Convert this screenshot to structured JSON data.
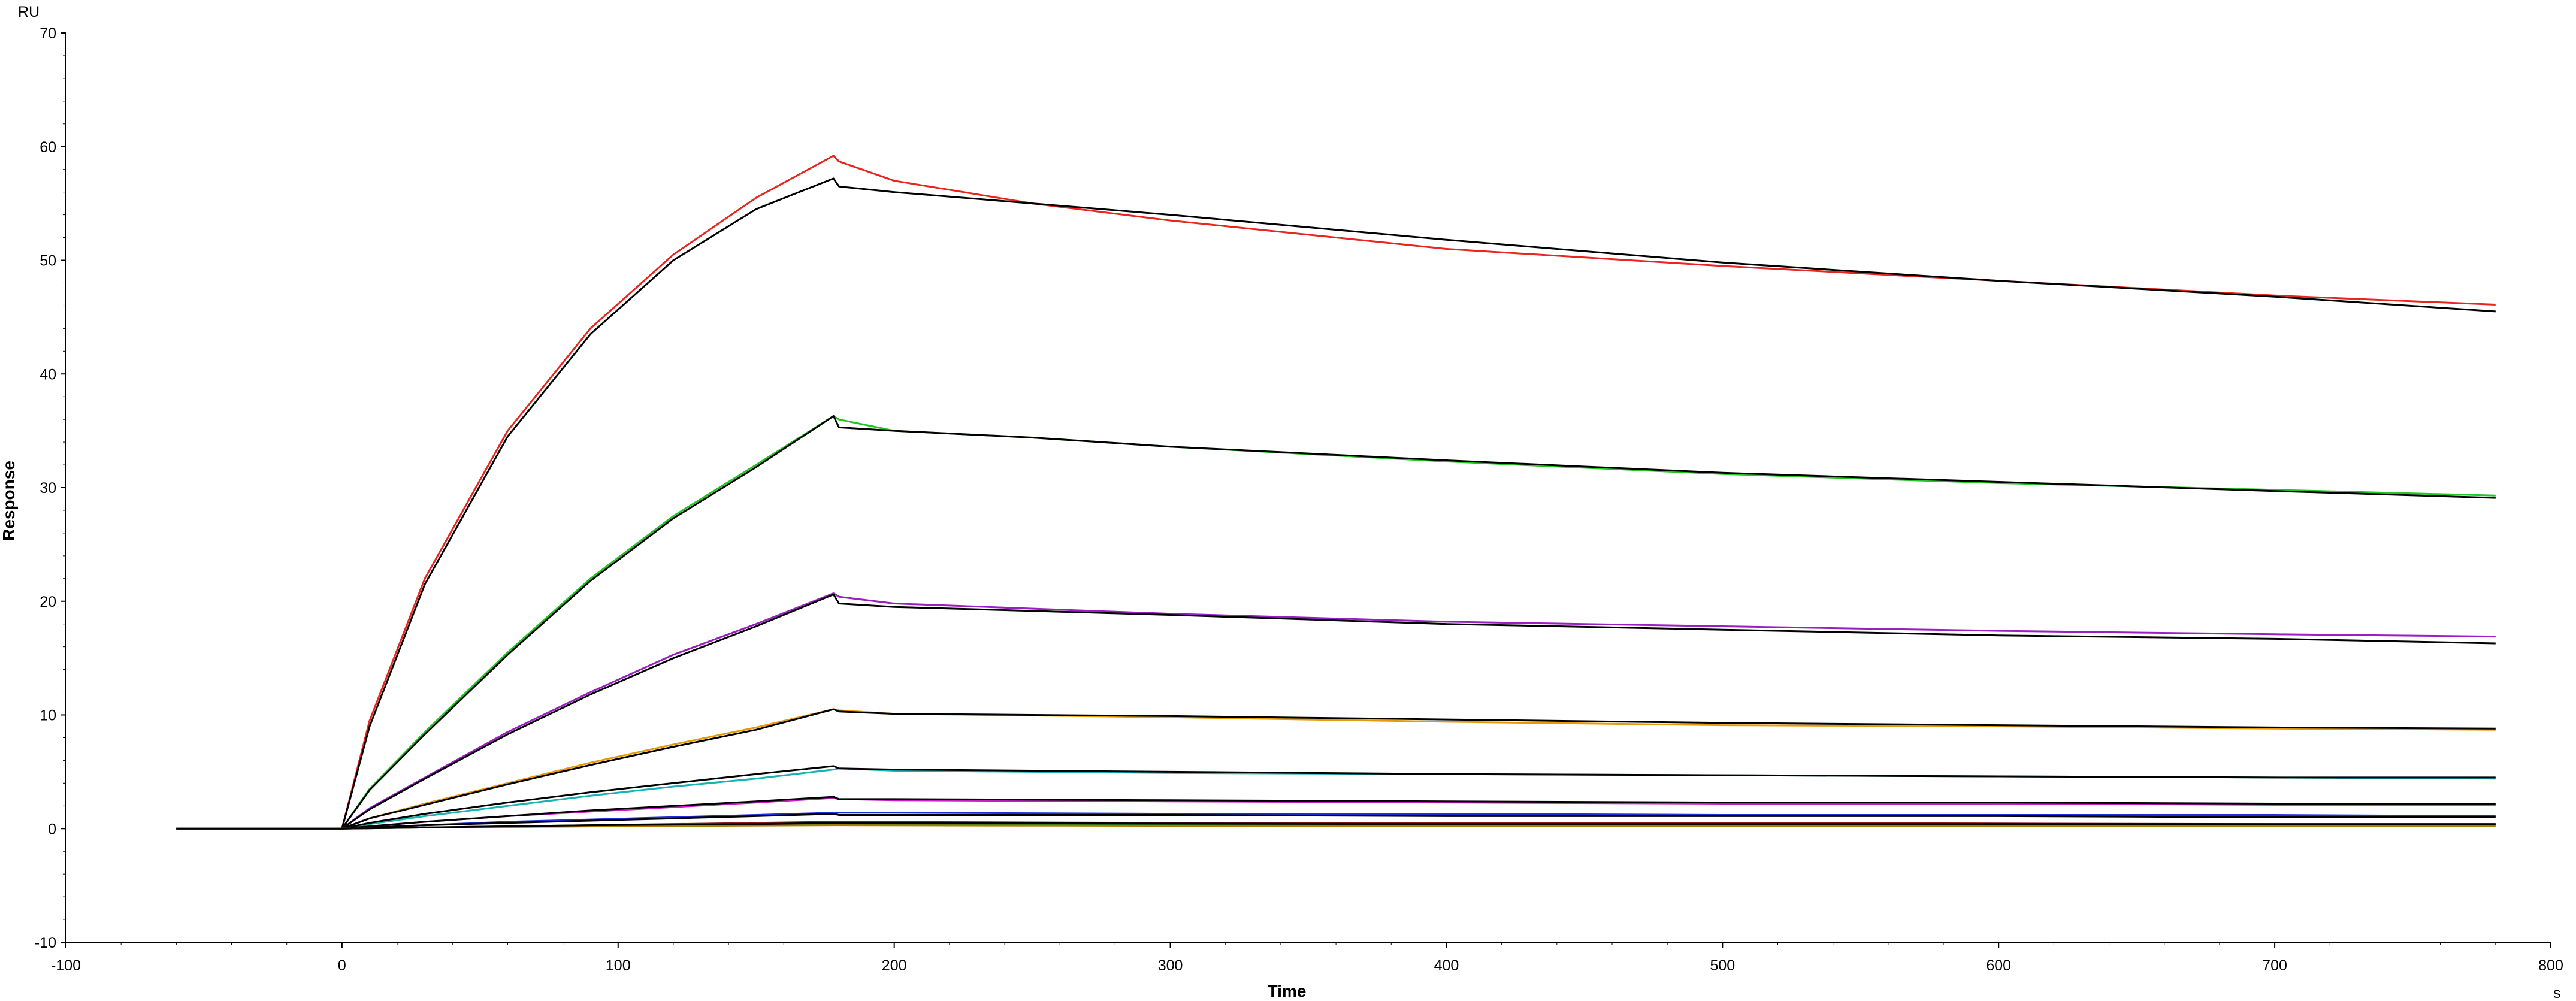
{
  "chart_data": {
    "type": "line",
    "title": "",
    "xlabel": "Time",
    "ylabel": "Response",
    "x_unit": "s",
    "y_unit": "RU",
    "xlim": [
      -100,
      800
    ],
    "ylim": [
      -10,
      70
    ],
    "x_ticks": [
      -100,
      0,
      100,
      200,
      300,
      400,
      500,
      600,
      700,
      800
    ],
    "y_ticks": [
      -10,
      0,
      10,
      20,
      30,
      40,
      50,
      60,
      70
    ],
    "grid": false,
    "legend": "none",
    "series": [
      {
        "color": "#e8251f",
        "points": [
          [
            -60,
            0
          ],
          [
            0,
            0
          ],
          [
            10,
            9.5
          ],
          [
            30,
            22
          ],
          [
            60,
            35
          ],
          [
            90,
            44
          ],
          [
            120,
            50.5
          ],
          [
            150,
            55.5
          ],
          [
            178,
            59.2
          ],
          [
            180,
            58.7
          ],
          [
            200,
            57
          ],
          [
            250,
            55
          ],
          [
            300,
            53.5
          ],
          [
            400,
            51
          ],
          [
            500,
            49.5
          ],
          [
            600,
            48.2
          ],
          [
            700,
            46.9
          ],
          [
            780,
            46.1
          ]
        ]
      },
      {
        "color": "#000000",
        "points": [
          [
            -60,
            0
          ],
          [
            0,
            0
          ],
          [
            10,
            9
          ],
          [
            30,
            21.5
          ],
          [
            60,
            34.5
          ],
          [
            90,
            43.5
          ],
          [
            120,
            50
          ],
          [
            150,
            54.5
          ],
          [
            178,
            57.2
          ],
          [
            180,
            56.5
          ],
          [
            200,
            56
          ],
          [
            250,
            55
          ],
          [
            300,
            54
          ],
          [
            400,
            51.8
          ],
          [
            500,
            49.8
          ],
          [
            600,
            48.2
          ],
          [
            700,
            46.8
          ],
          [
            780,
            45.5
          ]
        ]
      },
      {
        "color": "#22c622",
        "points": [
          [
            -60,
            0
          ],
          [
            0,
            0
          ],
          [
            10,
            3.5
          ],
          [
            30,
            8.5
          ],
          [
            60,
            15.5
          ],
          [
            90,
            22
          ],
          [
            120,
            27.5
          ],
          [
            150,
            32
          ],
          [
            178,
            36.3
          ],
          [
            180,
            36
          ],
          [
            200,
            35
          ],
          [
            250,
            34.4
          ],
          [
            300,
            33.6
          ],
          [
            400,
            32.3
          ],
          [
            500,
            31.2
          ],
          [
            600,
            30.4
          ],
          [
            700,
            29.8
          ],
          [
            780,
            29.3
          ]
        ]
      },
      {
        "color": "#000000",
        "points": [
          [
            -60,
            0
          ],
          [
            0,
            0
          ],
          [
            10,
            3.4
          ],
          [
            30,
            8.3
          ],
          [
            60,
            15.3
          ],
          [
            90,
            21.8
          ],
          [
            120,
            27.3
          ],
          [
            150,
            31.8
          ],
          [
            178,
            36.3
          ],
          [
            180,
            35.3
          ],
          [
            200,
            35
          ],
          [
            250,
            34.4
          ],
          [
            300,
            33.6
          ],
          [
            400,
            32.4
          ],
          [
            500,
            31.3
          ],
          [
            600,
            30.5
          ],
          [
            700,
            29.7
          ],
          [
            780,
            29.1
          ]
        ]
      },
      {
        "color": "#9b1ec2",
        "points": [
          [
            -60,
            0
          ],
          [
            0,
            0
          ],
          [
            10,
            1.8
          ],
          [
            30,
            4.5
          ],
          [
            60,
            8.5
          ],
          [
            90,
            12
          ],
          [
            120,
            15.3
          ],
          [
            150,
            18
          ],
          [
            178,
            20.7
          ],
          [
            180,
            20.4
          ],
          [
            200,
            19.8
          ],
          [
            300,
            18.9
          ],
          [
            400,
            18.2
          ],
          [
            500,
            17.8
          ],
          [
            600,
            17.4
          ],
          [
            700,
            17.1
          ],
          [
            780,
            16.9
          ]
        ]
      },
      {
        "color": "#000000",
        "points": [
          [
            -60,
            0
          ],
          [
            0,
            0
          ],
          [
            10,
            1.7
          ],
          [
            30,
            4.4
          ],
          [
            60,
            8.3
          ],
          [
            90,
            11.8
          ],
          [
            120,
            15
          ],
          [
            150,
            17.8
          ],
          [
            178,
            20.6
          ],
          [
            180,
            19.8
          ],
          [
            200,
            19.5
          ],
          [
            300,
            18.8
          ],
          [
            400,
            18
          ],
          [
            500,
            17.5
          ],
          [
            600,
            17
          ],
          [
            700,
            16.7
          ],
          [
            780,
            16.3
          ]
        ]
      },
      {
        "color": "#e69a0a",
        "points": [
          [
            -60,
            0
          ],
          [
            0,
            0
          ],
          [
            10,
            0.9
          ],
          [
            30,
            2.2
          ],
          [
            60,
            4
          ],
          [
            90,
            5.8
          ],
          [
            120,
            7.4
          ],
          [
            150,
            8.9
          ],
          [
            178,
            10.5
          ],
          [
            180,
            10.4
          ],
          [
            200,
            10.1
          ],
          [
            300,
            9.8
          ],
          [
            400,
            9.4
          ],
          [
            500,
            9.1
          ],
          [
            600,
            9
          ],
          [
            700,
            8.8
          ],
          [
            780,
            8.7
          ]
        ]
      },
      {
        "color": "#000000",
        "points": [
          [
            -60,
            0
          ],
          [
            0,
            0
          ],
          [
            10,
            0.9
          ],
          [
            30,
            2.1
          ],
          [
            60,
            3.9
          ],
          [
            90,
            5.6
          ],
          [
            120,
            7.2
          ],
          [
            150,
            8.7
          ],
          [
            178,
            10.5
          ],
          [
            180,
            10.3
          ],
          [
            200,
            10.1
          ],
          [
            300,
            9.9
          ],
          [
            400,
            9.6
          ],
          [
            500,
            9.3
          ],
          [
            600,
            9.1
          ],
          [
            700,
            8.9
          ],
          [
            780,
            8.8
          ]
        ]
      },
      {
        "color": "#17b3b3",
        "points": [
          [
            -60,
            0
          ],
          [
            0,
            0
          ],
          [
            10,
            0.4
          ],
          [
            30,
            1.1
          ],
          [
            60,
            2
          ],
          [
            90,
            2.9
          ],
          [
            120,
            3.7
          ],
          [
            150,
            4.4
          ],
          [
            178,
            5.2
          ],
          [
            180,
            5.3
          ],
          [
            200,
            5.1
          ],
          [
            300,
            4.9
          ],
          [
            400,
            4.8
          ],
          [
            500,
            4.7
          ],
          [
            600,
            4.6
          ],
          [
            700,
            4.5
          ],
          [
            780,
            4.4
          ]
        ]
      },
      {
        "color": "#000000",
        "points": [
          [
            -60,
            0
          ],
          [
            0,
            0
          ],
          [
            10,
            0.5
          ],
          [
            30,
            1.3
          ],
          [
            60,
            2.3
          ],
          [
            90,
            3.2
          ],
          [
            120,
            4
          ],
          [
            150,
            4.8
          ],
          [
            178,
            5.5
          ],
          [
            180,
            5.3
          ],
          [
            200,
            5.2
          ],
          [
            300,
            5.0
          ],
          [
            400,
            4.8
          ],
          [
            500,
            4.7
          ],
          [
            600,
            4.6
          ],
          [
            700,
            4.5
          ],
          [
            780,
            4.5
          ]
        ]
      },
      {
        "color": "#c81ec8",
        "points": [
          [
            -60,
            0
          ],
          [
            0,
            0
          ],
          [
            10,
            0.2
          ],
          [
            30,
            0.6
          ],
          [
            60,
            1.1
          ],
          [
            90,
            1.5
          ],
          [
            120,
            1.9
          ],
          [
            150,
            2.3
          ],
          [
            178,
            2.7
          ],
          [
            180,
            2.6
          ],
          [
            200,
            2.5
          ],
          [
            300,
            2.4
          ],
          [
            400,
            2.3
          ],
          [
            500,
            2.2
          ],
          [
            600,
            2.2
          ],
          [
            700,
            2.1
          ],
          [
            780,
            2.1
          ]
        ]
      },
      {
        "color": "#000000",
        "points": [
          [
            -60,
            0
          ],
          [
            0,
            0
          ],
          [
            10,
            0.2
          ],
          [
            30,
            0.6
          ],
          [
            60,
            1.1
          ],
          [
            90,
            1.6
          ],
          [
            120,
            2
          ],
          [
            150,
            2.4
          ],
          [
            178,
            2.8
          ],
          [
            180,
            2.6
          ],
          [
            200,
            2.6
          ],
          [
            300,
            2.5
          ],
          [
            400,
            2.4
          ],
          [
            500,
            2.3
          ],
          [
            600,
            2.3
          ],
          [
            700,
            2.2
          ],
          [
            780,
            2.2
          ]
        ]
      },
      {
        "color": "#1e2fd8",
        "points": [
          [
            -60,
            0
          ],
          [
            0,
            0
          ],
          [
            10,
            0.1
          ],
          [
            30,
            0.3
          ],
          [
            60,
            0.6
          ],
          [
            90,
            0.8
          ],
          [
            120,
            1
          ],
          [
            150,
            1.2
          ],
          [
            178,
            1.4
          ],
          [
            180,
            1.4
          ],
          [
            200,
            1.4
          ],
          [
            300,
            1.3
          ],
          [
            400,
            1.3
          ],
          [
            500,
            1.2
          ],
          [
            600,
            1.2
          ],
          [
            700,
            1.2
          ],
          [
            780,
            1.1
          ]
        ]
      },
      {
        "color": "#000000",
        "points": [
          [
            -60,
            0
          ],
          [
            0,
            0
          ],
          [
            10,
            0.1
          ],
          [
            30,
            0.3
          ],
          [
            60,
            0.5
          ],
          [
            90,
            0.7
          ],
          [
            120,
            0.9
          ],
          [
            150,
            1.1
          ],
          [
            178,
            1.3
          ],
          [
            180,
            1.2
          ],
          [
            200,
            1.2
          ],
          [
            300,
            1.2
          ],
          [
            400,
            1.1
          ],
          [
            500,
            1.1
          ],
          [
            600,
            1.1
          ],
          [
            700,
            1.0
          ],
          [
            780,
            1.0
          ]
        ]
      },
      {
        "color": "#8a1a1a",
        "points": [
          [
            -60,
            0
          ],
          [
            0,
            0
          ],
          [
            30,
            0.1
          ],
          [
            90,
            0.3
          ],
          [
            150,
            0.5
          ],
          [
            178,
            0.6
          ],
          [
            180,
            0.6
          ],
          [
            300,
            0.5
          ],
          [
            500,
            0.5
          ],
          [
            700,
            0.4
          ],
          [
            780,
            0.4
          ]
        ]
      },
      {
        "color": "#1d7a1d",
        "points": [
          [
            -60,
            0
          ],
          [
            0,
            0
          ],
          [
            30,
            0.1
          ],
          [
            90,
            0.2
          ],
          [
            150,
            0.3
          ],
          [
            178,
            0.4
          ],
          [
            180,
            0.4
          ],
          [
            300,
            0.4
          ],
          [
            500,
            0.3
          ],
          [
            700,
            0.3
          ],
          [
            780,
            0.3
          ]
        ]
      },
      {
        "color": "#b07a00",
        "points": [
          [
            -60,
            0
          ],
          [
            0,
            0
          ],
          [
            30,
            0.1
          ],
          [
            90,
            0.2
          ],
          [
            178,
            0.3
          ],
          [
            180,
            0.3
          ],
          [
            400,
            0.2
          ],
          [
            780,
            0.2
          ]
        ]
      },
      {
        "color": "#000000",
        "points": [
          [
            -60,
            0
          ],
          [
            0,
            0
          ],
          [
            30,
            0.1
          ],
          [
            90,
            0.3
          ],
          [
            150,
            0.4
          ],
          [
            178,
            0.5
          ],
          [
            180,
            0.5
          ],
          [
            400,
            0.4
          ],
          [
            780,
            0.4
          ]
        ]
      }
    ]
  }
}
